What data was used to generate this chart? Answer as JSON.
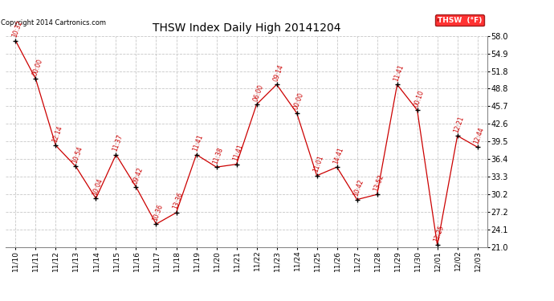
{
  "title": "THSW Index Daily High 20141204",
  "copyright": "Copyright 2014 Cartronics.com",
  "legend_label": "THSW  (°F)",
  "background_color": "#ffffff",
  "grid_color": "#c8c8c8",
  "line_color": "#cc0000",
  "marker_color": "#000000",
  "ylim": [
    21.0,
    58.0
  ],
  "yticks": [
    21.0,
    24.1,
    27.2,
    30.2,
    33.3,
    36.4,
    39.5,
    42.6,
    45.7,
    48.8,
    51.8,
    54.9,
    58.0
  ],
  "dates": [
    "11/10",
    "11/11",
    "11/12",
    "11/13",
    "11/14",
    "11/15",
    "11/16",
    "11/17",
    "11/18",
    "11/19",
    "11/20",
    "11/21",
    "11/22",
    "11/23",
    "11/24",
    "11/25",
    "11/26",
    "11/27",
    "11/28",
    "11/29",
    "11/30",
    "12/01",
    "12/02",
    "12/03"
  ],
  "values": [
    57.2,
    50.5,
    38.8,
    35.1,
    29.5,
    37.2,
    31.5,
    25.0,
    27.0,
    37.2,
    35.0,
    35.5,
    46.0,
    49.5,
    44.5,
    33.5,
    35.0,
    29.3,
    30.2,
    49.5,
    45.0,
    21.3,
    40.5,
    38.5
  ],
  "time_labels": [
    "10:32",
    "00:00",
    "12:14",
    "10:54",
    "10:04",
    "11:37",
    "09:42",
    "10:36",
    "13:36",
    "11:41",
    "11:38",
    "11:41",
    "06:00",
    "09:14",
    "00:00",
    "11:01",
    "14:41",
    "10:42",
    "13:52",
    "11:41",
    "00:10",
    "12:25",
    "12:21",
    "12:44"
  ]
}
